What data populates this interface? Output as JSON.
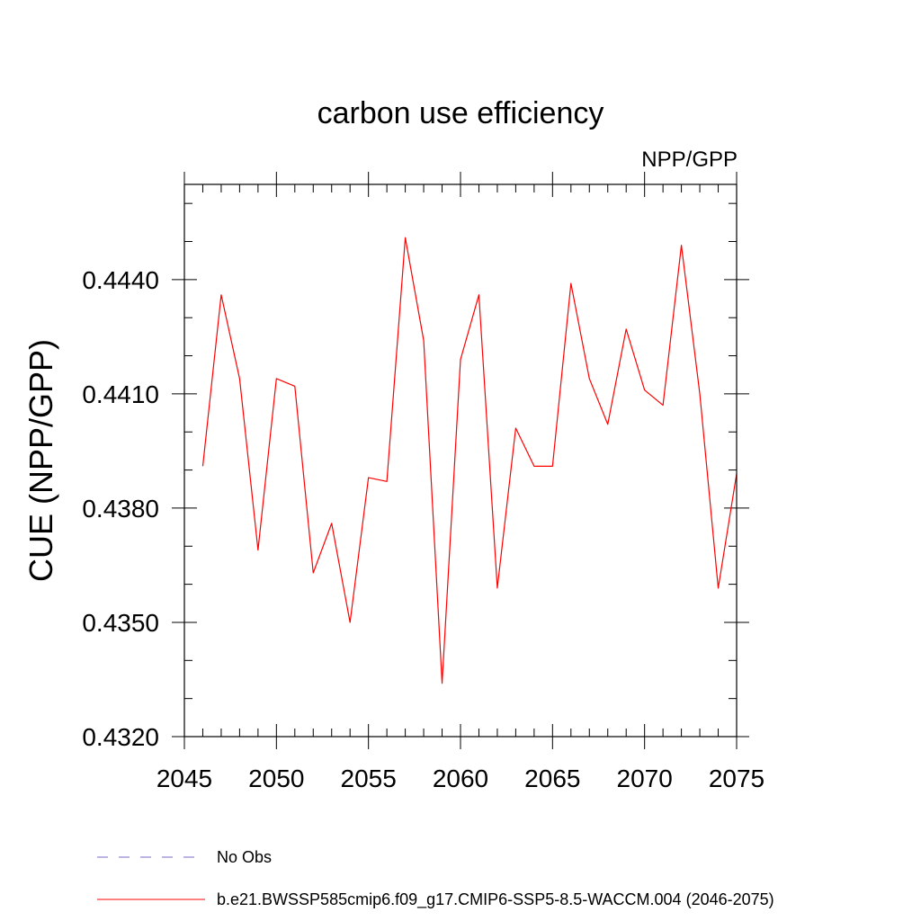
{
  "chart_data": {
    "type": "line",
    "title": "carbon use efficiency",
    "subtitle": "NPP/GPP",
    "ylabel": "CUE  (NPP/GPP)",
    "xlabel": "",
    "xlim": [
      2045,
      2075
    ],
    "ylim": [
      0.432,
      0.4465
    ],
    "x_ticks": [
      2045,
      2050,
      2055,
      2060,
      2065,
      2070,
      2075
    ],
    "x_tick_labels": [
      "2045",
      "2050",
      "2055",
      "2060",
      "2065",
      "2070",
      "2075"
    ],
    "y_ticks": [
      0.432,
      0.435,
      0.438,
      0.441,
      0.444
    ],
    "y_tick_labels": [
      "0.4320",
      "0.4350",
      "0.4380",
      "0.4410",
      "0.4440"
    ],
    "y_minor_step": 0.001,
    "x_minor_step": 1,
    "grid": false,
    "legend_position": "bottom",
    "legend": [
      {
        "label": "No Obs",
        "color": "#7b68c8",
        "style": "dashed"
      },
      {
        "label": "b.e21.BWSSP585cmip6.f09_g17.CMIP6-SSP5-8.5-WACCM.004 (2046-2075)",
        "color": "#ff0000",
        "style": "solid"
      }
    ],
    "series": [
      {
        "color": "#ff0000",
        "x": [
          2046,
          2047,
          2048,
          2049,
          2050,
          2051,
          2052,
          2053,
          2054,
          2055,
          2056,
          2057,
          2058,
          2059,
          2060,
          2061,
          2062,
          2063,
          2064,
          2065,
          2066,
          2067,
          2068,
          2069,
          2070,
          2071,
          2072,
          2073,
          2074,
          2075
        ],
        "values": [
          0.4391,
          0.4436,
          0.4414,
          0.4369,
          0.4414,
          0.4412,
          0.4363,
          0.4376,
          0.435,
          0.4388,
          0.4387,
          0.4451,
          0.4424,
          0.4334,
          0.4419,
          0.4436,
          0.4359,
          0.4401,
          0.4391,
          0.4391,
          0.4439,
          0.4414,
          0.4402,
          0.4427,
          0.4411,
          0.4407,
          0.4449,
          0.441,
          0.4359,
          0.4389
        ]
      }
    ]
  }
}
